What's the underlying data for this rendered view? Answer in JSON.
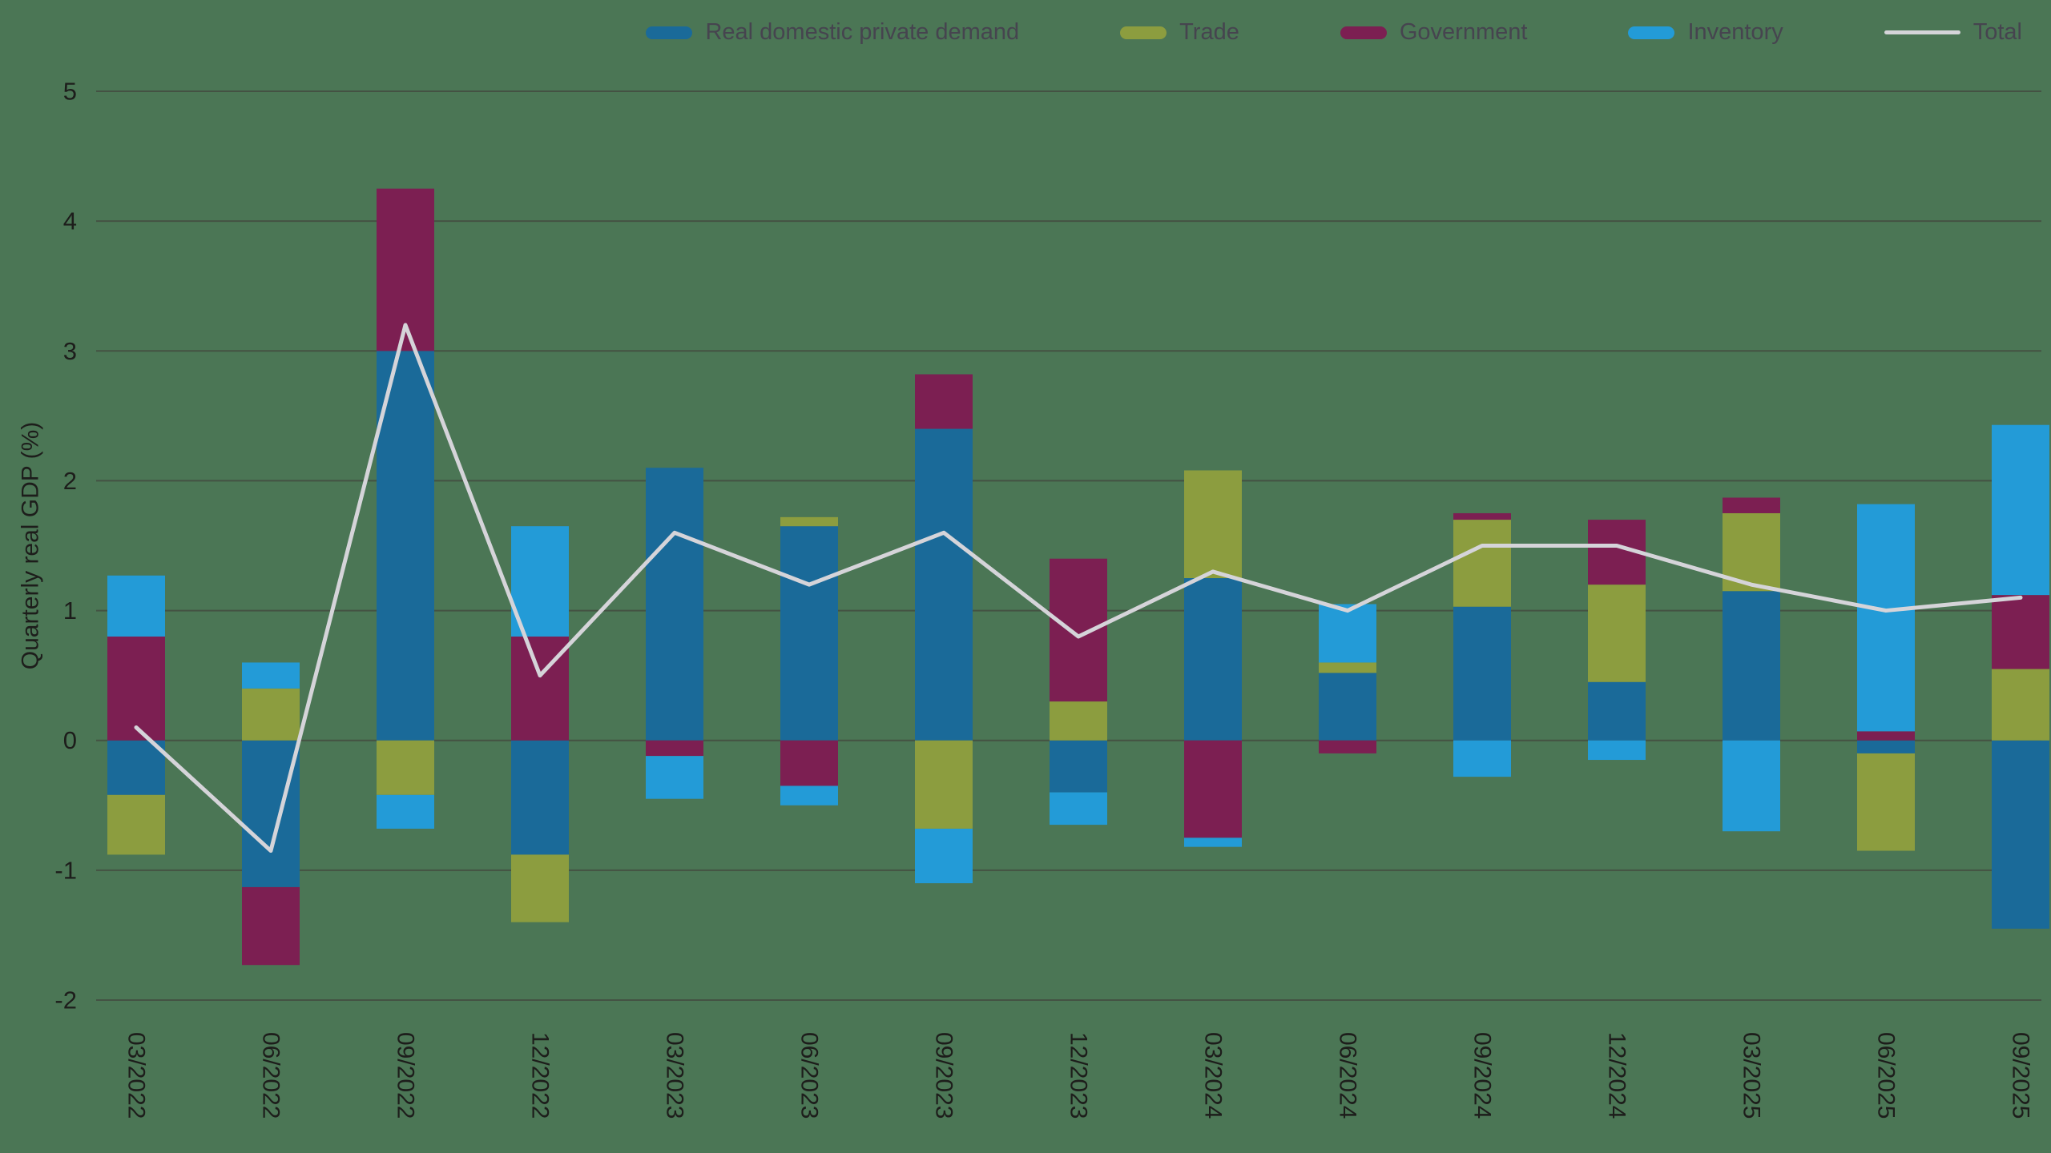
{
  "colors": {
    "background": "#4b7655",
    "grid": "#445243",
    "text": "#1d1d1b",
    "legend_text": "#46444f"
  },
  "legend": {
    "position": "top-right",
    "items": [
      {
        "label": "Real domestic private demand",
        "color": "#1a6a99",
        "type": "bar"
      },
      {
        "label": "Trade",
        "color": "#8c9d3f",
        "type": "bar"
      },
      {
        "label": "Government",
        "color": "#7c1f52",
        "type": "bar"
      },
      {
        "label": "Inventory",
        "color": "#239bd7",
        "type": "bar"
      },
      {
        "label": "Total",
        "color": "#d5d4d9",
        "type": "line"
      }
    ]
  },
  "chart_data": {
    "type": "bar",
    "stacked": true,
    "title": "",
    "xlabel": "",
    "ylabel": "Quarterly real GDP (%)",
    "ylim": [
      -2,
      5
    ],
    "yticks": [
      -2,
      -1,
      0,
      1,
      2,
      3,
      4,
      5
    ],
    "grid": true,
    "legend_position": "top-right",
    "categories": [
      "03/2022",
      "06/2022",
      "09/2022",
      "12/2022",
      "03/2023",
      "06/2023",
      "09/2023",
      "12/2023",
      "03/2024",
      "06/2024",
      "09/2024",
      "12/2024",
      "03/2025",
      "06/2025",
      "09/2025"
    ],
    "series": [
      {
        "name": "Real domestic private demand",
        "color": "#1a6a99",
        "values": [
          -0.42,
          -1.13,
          3.0,
          -0.88,
          2.1,
          1.65,
          2.4,
          -0.4,
          1.25,
          0.52,
          1.03,
          0.45,
          1.15,
          -0.1,
          -1.45
        ]
      },
      {
        "name": "Trade",
        "color": "#8c9d3f",
        "values": [
          -0.46,
          0.4,
          -0.42,
          -0.52,
          0.0,
          0.07,
          -0.68,
          0.3,
          0.83,
          0.08,
          0.67,
          0.75,
          0.6,
          -0.75,
          0.55
        ]
      },
      {
        "name": "Government",
        "color": "#7c1f52",
        "values": [
          0.8,
          -0.6,
          1.25,
          0.8,
          -0.12,
          -0.35,
          0.42,
          1.1,
          -0.75,
          -0.1,
          0.05,
          0.5,
          0.12,
          0.07,
          0.57
        ]
      },
      {
        "name": "Inventory",
        "color": "#239bd7",
        "values": [
          0.47,
          0.2,
          -0.26,
          0.85,
          -0.33,
          -0.15,
          -0.42,
          -0.25,
          -0.07,
          0.45,
          -0.28,
          -0.15,
          -0.7,
          1.75,
          1.31
        ]
      }
    ],
    "line_series": {
      "name": "Total",
      "color": "#d5d4d9",
      "values": [
        0.1,
        -0.85,
        3.2,
        0.5,
        1.6,
        1.2,
        1.6,
        0.8,
        1.3,
        1.0,
        1.5,
        1.5,
        1.2,
        1.0,
        1.1
      ]
    }
  }
}
